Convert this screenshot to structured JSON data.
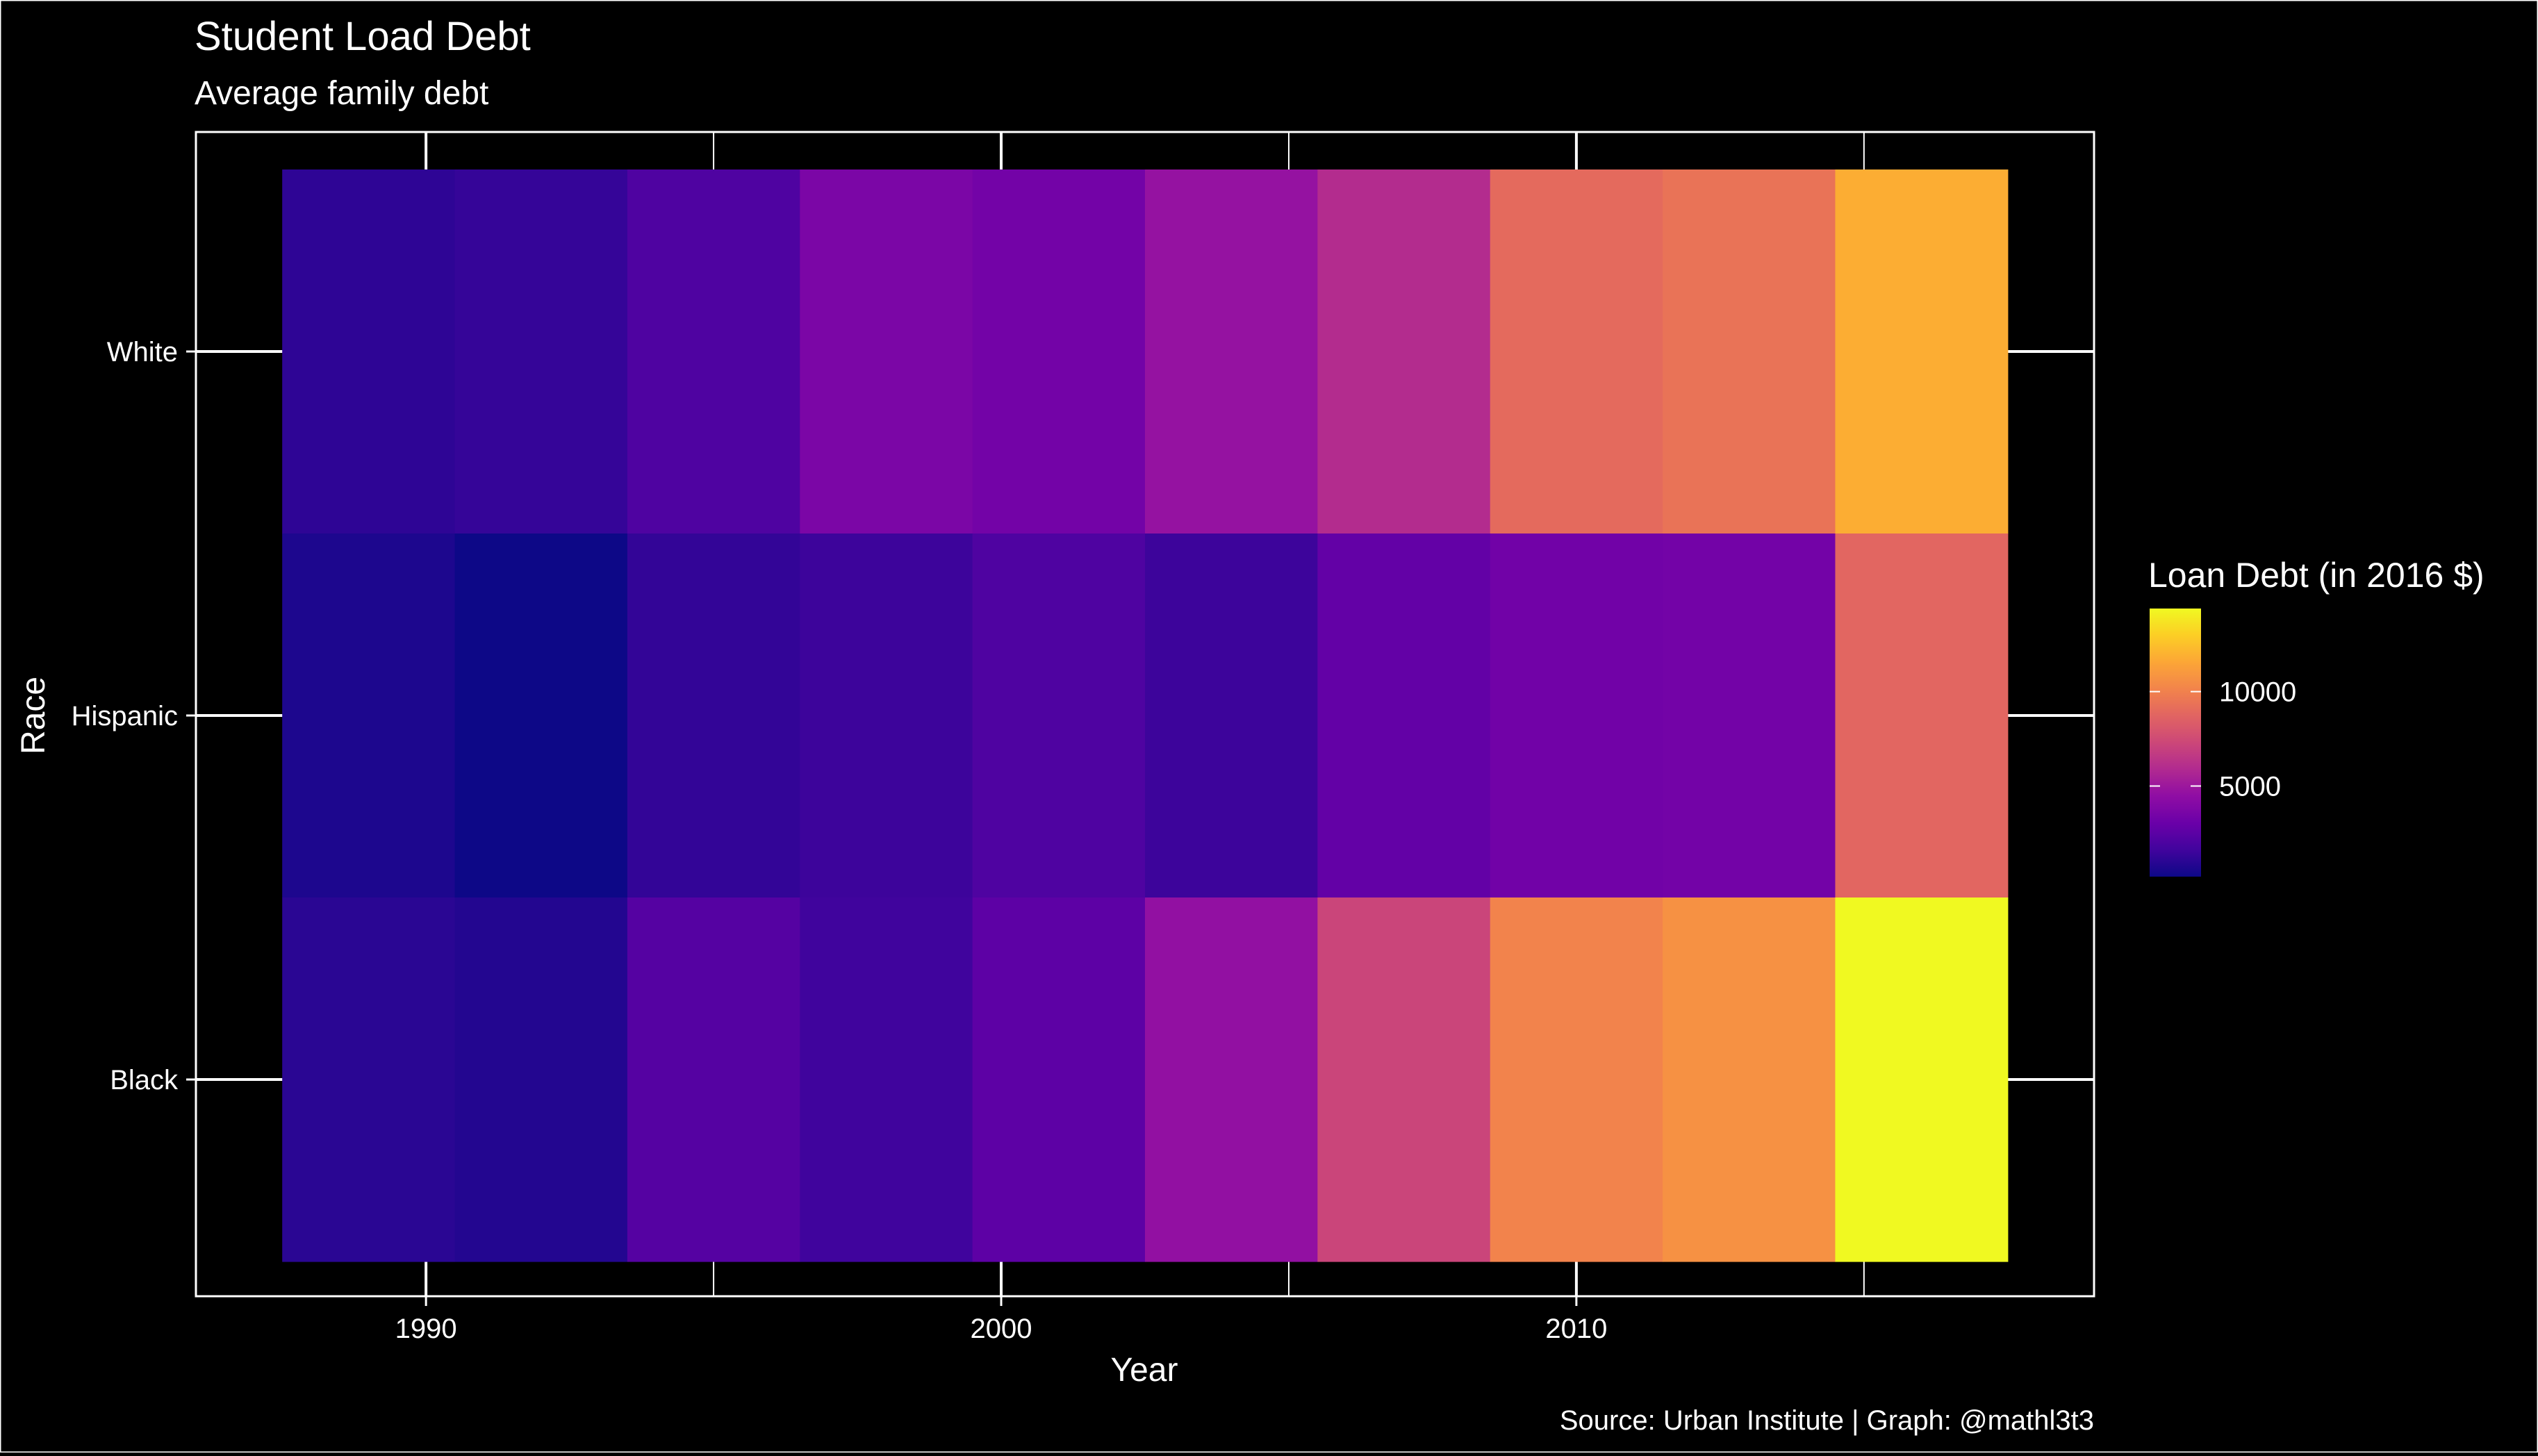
{
  "chart_data": {
    "type": "heatmap",
    "title": "Student Load Debt",
    "subtitle": "Average family debt",
    "xlabel": "Year",
    "ylabel": "Race",
    "caption": "Source: Urban Institute | Graph: @mathl3t3",
    "legend_title": "Loan Debt (in 2016 $)",
    "legend_position": "right",
    "x_ticks": [
      1990,
      2000,
      2010
    ],
    "xlim": [
      1986,
      2019
    ],
    "x": [
      1989,
      1992,
      1995,
      1998,
      2001,
      2004,
      2007,
      2010,
      2013,
      2016
    ],
    "categories": [
      "White",
      "Hispanic",
      "Black"
    ],
    "series": [
      {
        "name": "White",
        "values": [
          1100,
          1300,
          2100,
          3700,
          3400,
          4700,
          6000,
          9000,
          9400,
          11800
        ]
      },
      {
        "name": "Hispanic",
        "values": [
          650,
          200,
          1250,
          1500,
          2100,
          1500,
          2800,
          3300,
          3400,
          8800
        ]
      },
      {
        "name": "Black",
        "values": [
          1000,
          800,
          2300,
          1600,
          2600,
          4600,
          7200,
          10100,
          10700,
          14400
        ]
      }
    ],
    "color_scale": {
      "name": "plasma",
      "domain": [
        200,
        14400
      ],
      "legend_ticks": [
        5000,
        10000
      ]
    },
    "grid": true,
    "background": "#000000",
    "foreground": "#ffffff"
  }
}
